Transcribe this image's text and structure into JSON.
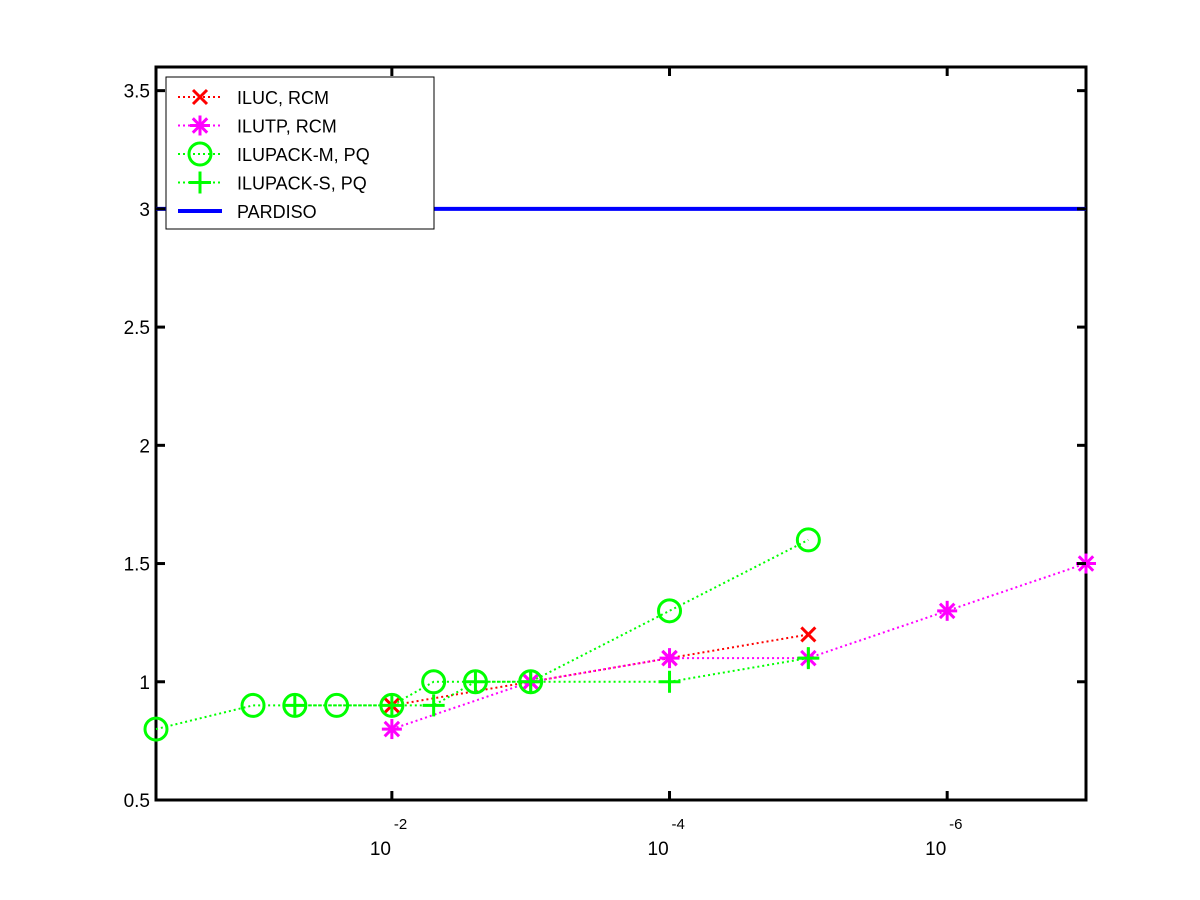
{
  "chart_data": {
    "type": "line",
    "title": "",
    "xlabel": "",
    "ylabel": "",
    "x_scale": "log",
    "x_reversed": true,
    "xlim": [
      0.5,
      1e-07
    ],
    "ylim": [
      0.5,
      3.6
    ],
    "grid": false,
    "legend_position": "top-left",
    "x_ticks": [
      {
        "value": 0.01,
        "base": "10",
        "exponent": "-2"
      },
      {
        "value": 0.0001,
        "base": "10",
        "exponent": "-4"
      },
      {
        "value": 1e-06,
        "base": "10",
        "exponent": "-6"
      }
    ],
    "y_ticks": [
      "0.5",
      "1",
      "1.5",
      "2",
      "2.5",
      "3",
      "3.5"
    ],
    "y_tick_values": [
      0.5,
      1,
      1.5,
      2,
      2.5,
      3,
      3.5
    ],
    "series": [
      {
        "name": "ILUC, RCM",
        "color": "#ff0000",
        "marker": "x",
        "line": "dotted",
        "points": [
          [
            0.01,
            0.9
          ],
          [
            0.001,
            1.0
          ],
          [
            0.0001,
            1.1
          ],
          [
            1e-05,
            1.2
          ]
        ]
      },
      {
        "name": "ILUTP, RCM",
        "color": "#ff00ff",
        "marker": "asterisk",
        "line": "dotted",
        "points": [
          [
            0.01,
            0.8
          ],
          [
            0.001,
            1.0
          ],
          [
            0.0001,
            1.1
          ],
          [
            1e-05,
            1.1
          ],
          [
            1e-06,
            1.3
          ],
          [
            1e-07,
            1.5
          ]
        ]
      },
      {
        "name": "ILUPACK-M, PQ",
        "color": "#00ff00",
        "marker": "circle",
        "line": "dotted",
        "points": [
          [
            0.5,
            0.8
          ],
          [
            0.1,
            0.9
          ],
          [
            0.05,
            0.9
          ],
          [
            0.025,
            0.9
          ],
          [
            0.01,
            0.9
          ],
          [
            0.005,
            1.0
          ],
          [
            0.0025,
            1.0
          ],
          [
            0.001,
            1.0
          ],
          [
            0.0001,
            1.3
          ],
          [
            1e-05,
            1.6
          ]
        ]
      },
      {
        "name": "ILUPACK-S, PQ",
        "color": "#00ff00",
        "marker": "plus",
        "line": "dotted",
        "points": [
          [
            0.05,
            0.9
          ],
          [
            0.01,
            0.9
          ],
          [
            0.005,
            0.9
          ],
          [
            0.0025,
            1.0
          ],
          [
            0.001,
            1.0
          ],
          [
            0.0001,
            1.0
          ],
          [
            1e-05,
            1.1
          ]
        ]
      },
      {
        "name": "PARDISO",
        "color": "#0000ff",
        "marker": "none",
        "line": "solid",
        "points": [
          [
            0.5,
            3.0
          ],
          [
            1e-07,
            3.0
          ]
        ]
      }
    ]
  }
}
